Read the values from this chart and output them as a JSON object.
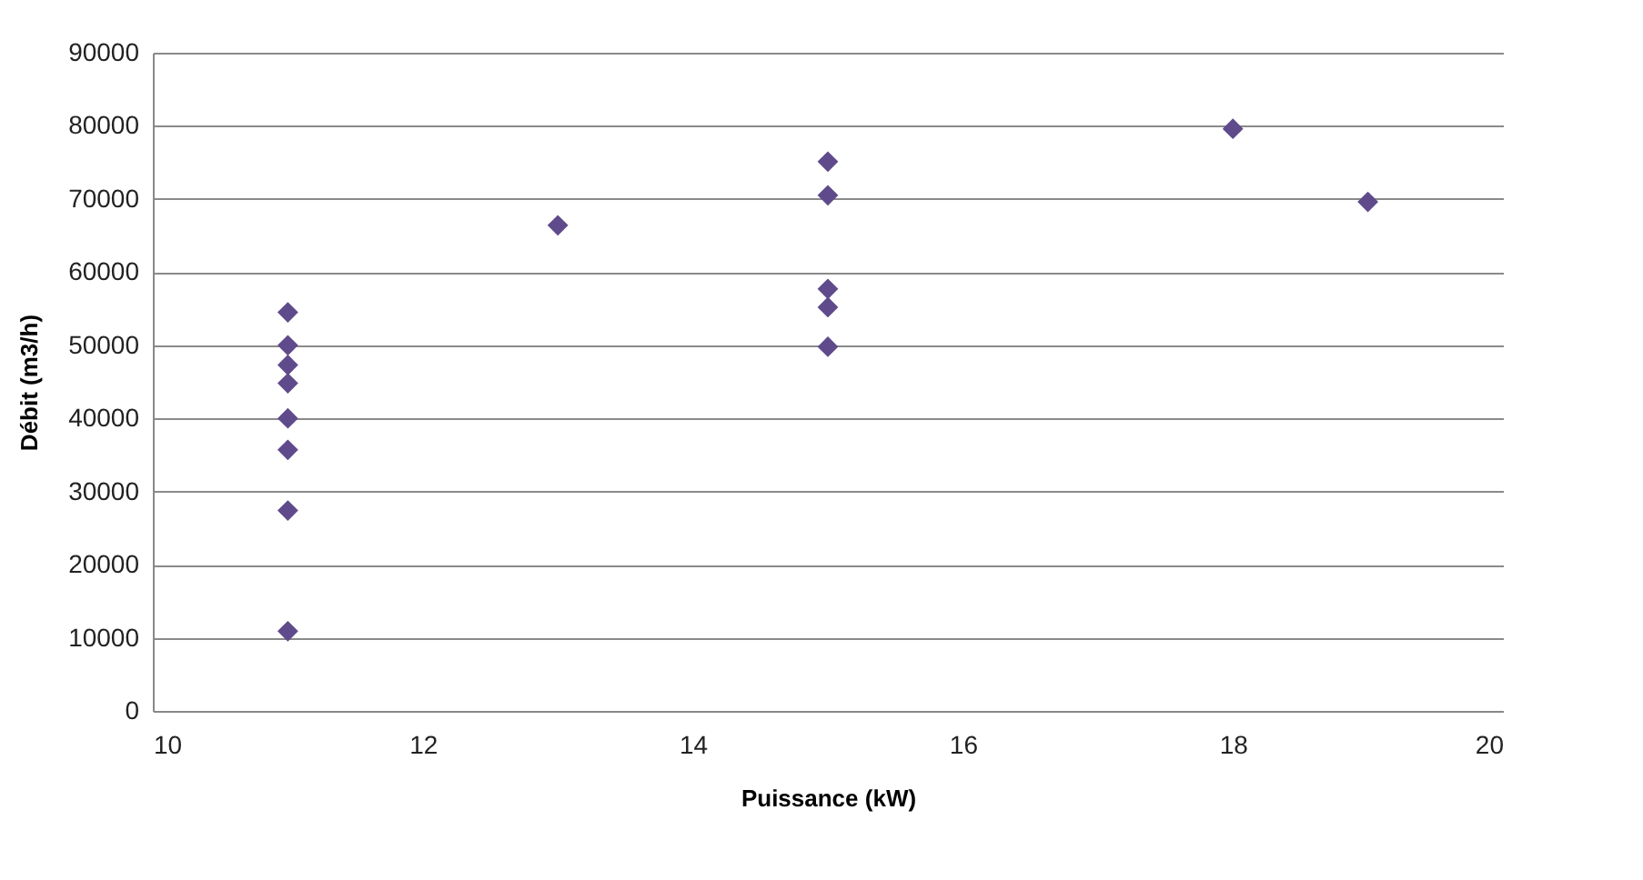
{
  "chart_data": {
    "type": "scatter",
    "xlabel": "Puissance (kW)",
    "ylabel": "Débit (m3/h)",
    "x": [
      11,
      11,
      11,
      11,
      11,
      11,
      11,
      11,
      13,
      15,
      15,
      15,
      15,
      15,
      18,
      19
    ],
    "series": [
      {
        "color": "#5f4b8b",
        "values": [
          54500,
          50000,
          47300,
          44800,
          40000,
          35700,
          27400,
          10900,
          66400,
          75100,
          70500,
          57700,
          55200,
          49800,
          79600,
          69600
        ]
      }
    ],
    "xlim": [
      10,
      20
    ],
    "xticks": [
      10,
      12,
      14,
      16,
      18,
      20
    ],
    "ylim": [
      0,
      90000
    ],
    "yticks": [
      0,
      10000,
      20000,
      30000,
      40000,
      50000,
      60000,
      70000,
      80000,
      90000
    ],
    "grid": "y",
    "marker": "diamond",
    "legend": false
  }
}
